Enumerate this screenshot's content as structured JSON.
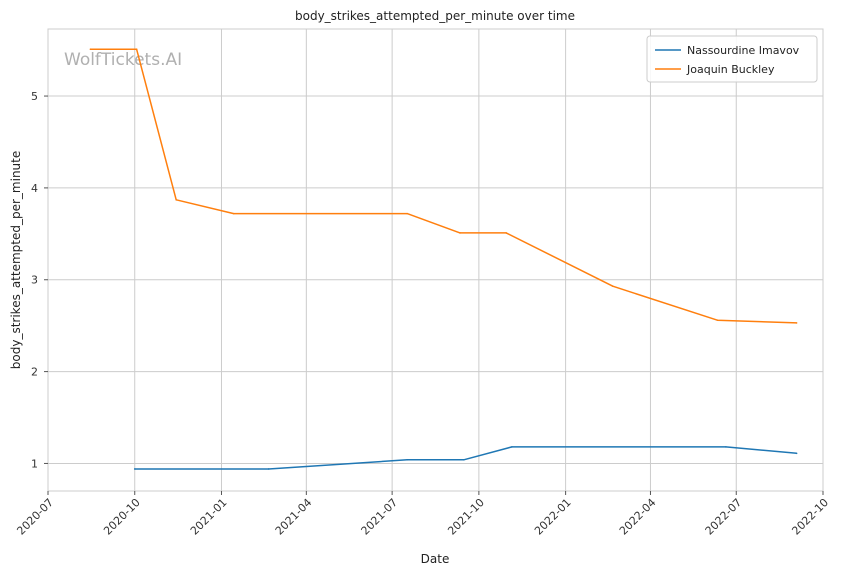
{
  "chart_data": {
    "type": "line",
    "title": "body_strikes_attempted_per_minute over time",
    "xlabel": "Date",
    "ylabel": "body_strikes_attempted_per_minute",
    "x_axis_type": "date",
    "xlim": [
      "2020-07-01",
      "2022-10-01"
    ],
    "ylim": [
      0.7,
      5.73
    ],
    "x_ticks": [
      "2020-07",
      "2020-10",
      "2021-01",
      "2021-04",
      "2021-07",
      "2021-10",
      "2022-01",
      "2022-04",
      "2022-07",
      "2022-10"
    ],
    "y_ticks": [
      1,
      2,
      3,
      4,
      5
    ],
    "grid": true,
    "legend": "top-right",
    "watermark": "WolfTickets.AI",
    "series": [
      {
        "name": "Nassourdine Imavov",
        "color": "#1f77b4",
        "points": [
          {
            "x": "2020-10-01",
            "y": 0.94
          },
          {
            "x": "2021-02-20",
            "y": 0.94
          },
          {
            "x": "2021-07-17",
            "y": 1.04
          },
          {
            "x": "2021-09-15",
            "y": 1.04
          },
          {
            "x": "2021-11-05",
            "y": 1.18
          },
          {
            "x": "2022-06-20",
            "y": 1.18
          },
          {
            "x": "2022-09-03",
            "y": 1.11
          }
        ]
      },
      {
        "name": "Joaquin Buckley",
        "color": "#ff7f0e",
        "points": [
          {
            "x": "2020-08-15",
            "y": 5.51
          },
          {
            "x": "2020-10-03",
            "y": 5.51
          },
          {
            "x": "2020-11-14",
            "y": 3.87
          },
          {
            "x": "2021-01-14",
            "y": 3.72
          },
          {
            "x": "2021-07-17",
            "y": 3.72
          },
          {
            "x": "2021-09-11",
            "y": 3.51
          },
          {
            "x": "2021-10-30",
            "y": 3.51
          },
          {
            "x": "2022-02-20",
            "y": 2.93
          },
          {
            "x": "2022-06-11",
            "y": 2.56
          },
          {
            "x": "2022-09-03",
            "y": 2.53
          }
        ]
      }
    ]
  }
}
